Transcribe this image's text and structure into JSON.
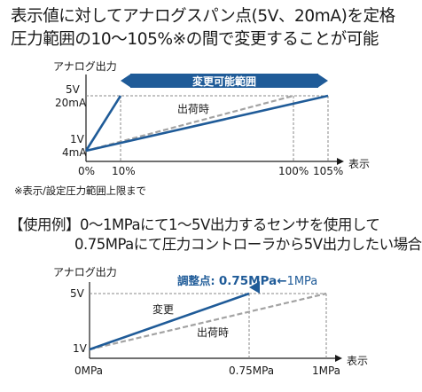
{
  "headline": {
    "line1": "表示値に対してアナログスパン点(5V、20mA)を定格",
    "line2": "圧力範囲の10〜105%※の間で変更することが可能"
  },
  "chart1": {
    "y_title": "アナログ出力",
    "y_top_v": "5V",
    "y_top_ma": "20mA",
    "y_bot_v": "1V",
    "y_bot_ma": "4mA",
    "band_label": "変更可能範囲",
    "factory_label": "出荷時",
    "x_ticks": [
      "0%",
      "10%",
      "100%",
      "105%"
    ],
    "x_title": "表示"
  },
  "footnote": "※表示/設定圧力範囲上限まで",
  "usage": {
    "tag": "【使用例】",
    "line1": "0〜1MPaにて1〜5V出力するセンサを使用して",
    "line2": "0.75MPaにて圧力コントローラから5V出力したい場合"
  },
  "chart2": {
    "y_title": "アナログ出力",
    "y_top": "5V",
    "y_bot": "1V",
    "adjust_prefix": "調整点:",
    "adjust_value": "0.75MPa←",
    "adjust_suffix": "1MPa",
    "changed_label": "変更",
    "factory_label": "出荷時",
    "x_ticks": [
      "0MPa",
      "0.75MPa",
      "1MPa"
    ],
    "x_title": "表示"
  },
  "colors": {
    "accent": "#1f5b98",
    "factory_line": "#a3a3a3",
    "text": "#1a1a1a",
    "band_text": "#ffffff"
  }
}
